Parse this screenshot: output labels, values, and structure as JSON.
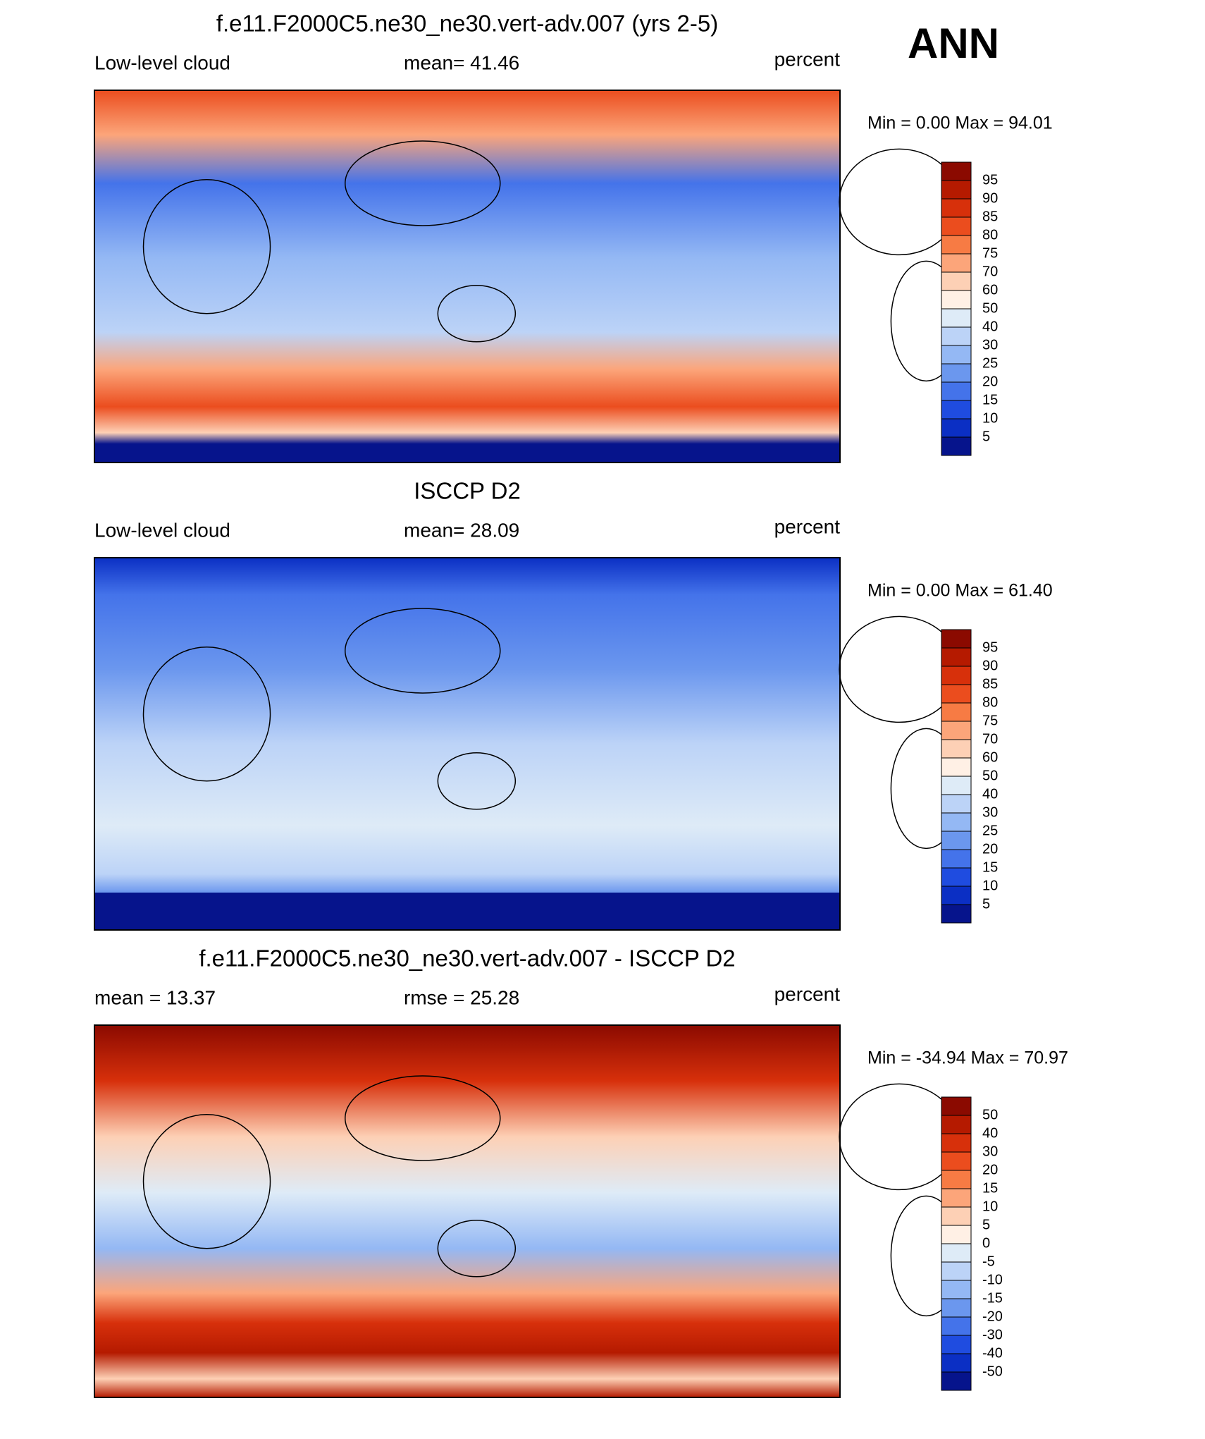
{
  "figure": {
    "season": "ANN"
  },
  "panels": [
    {
      "title": "f.e11.F2000C5.ne30_ne30.vert-adv.007 (yrs 2-5)",
      "left": "Low-level cloud",
      "center": "mean=  41.46",
      "right": "percent",
      "minmax": "Min =   0.00 Max =  94.01",
      "colorbar": {
        "labels": [
          "95",
          "90",
          "85",
          "80",
          "75",
          "70",
          "60",
          "50",
          "40",
          "30",
          "25",
          "20",
          "15",
          "10",
          "5"
        ],
        "colors": [
          "#8b0a00",
          "#b51a00",
          "#d7300b",
          "#eb4d1e",
          "#f77b44",
          "#fca57a",
          "#fdd0b5",
          "#fff0e5",
          "#deebf7",
          "#bcd3f7",
          "#94b8f4",
          "#6b97ee",
          "#4473ea",
          "#1f4ce0",
          "#0b2fc4",
          "#06148c"
        ]
      }
    },
    {
      "title": "ISCCP D2",
      "left": "Low-level cloud",
      "center": "mean=  28.09",
      "right": "percent",
      "minmax": "Min =   0.00 Max =  61.40",
      "colorbar": {
        "labels": [
          "95",
          "90",
          "85",
          "80",
          "75",
          "70",
          "60",
          "50",
          "40",
          "30",
          "25",
          "20",
          "15",
          "10",
          "5"
        ],
        "colors": [
          "#8b0a00",
          "#b51a00",
          "#d7300b",
          "#eb4d1e",
          "#f77b44",
          "#fca57a",
          "#fdd0b5",
          "#fff0e5",
          "#deebf7",
          "#bcd3f7",
          "#94b8f4",
          "#6b97ee",
          "#4473ea",
          "#1f4ce0",
          "#0b2fc4",
          "#06148c"
        ]
      }
    },
    {
      "title": "f.e11.F2000C5.ne30_ne30.vert-adv.007 - ISCCP D2",
      "left": "mean =  13.37",
      "center": "rmse =  25.28",
      "right": "percent",
      "minmax": "Min = -34.94 Max =  70.97",
      "colorbar": {
        "labels": [
          "50",
          "40",
          "30",
          "20",
          "15",
          "10",
          "5",
          "0",
          "-5",
          "-10",
          "-15",
          "-20",
          "-30",
          "-40",
          "-50"
        ],
        "colors": [
          "#8b0a00",
          "#b51a00",
          "#d7300b",
          "#eb4d1e",
          "#f77b44",
          "#fca57a",
          "#fdd0b5",
          "#fff0e5",
          "#deebf7",
          "#bcd3f7",
          "#94b8f4",
          "#6b97ee",
          "#4473ea",
          "#1f4ce0",
          "#0b2fc4",
          "#06148c"
        ]
      }
    }
  ]
}
